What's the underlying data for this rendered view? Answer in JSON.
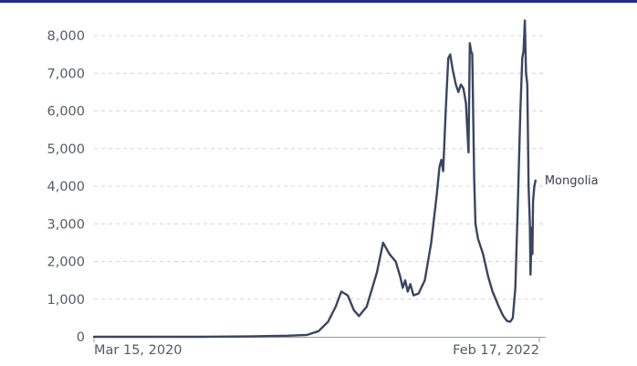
{
  "chart_data": {
    "type": "line",
    "x_ticks": [
      "Mar 15, 2020",
      "Feb 17, 2022"
    ],
    "y_ticks": [
      0,
      1000,
      2000,
      3000,
      4000,
      5000,
      6000,
      7000,
      8000
    ],
    "y_tick_labels": [
      "0",
      "1,000",
      "2,000",
      "3,000",
      "4,000",
      "5,000",
      "6,000",
      "7,000",
      "8,000"
    ],
    "ylim": [
      0,
      8000
    ],
    "xlim": [
      "2020-03-15",
      "2022-02-17"
    ],
    "grid": true,
    "series": [
      {
        "name": "Mongolia",
        "color": "#3a4560",
        "points": [
          [
            "2020-03-15",
            0
          ],
          [
            "2020-06-01",
            0
          ],
          [
            "2020-09-01",
            0
          ],
          [
            "2020-11-15",
            10
          ],
          [
            "2020-12-15",
            20
          ],
          [
            "2021-01-15",
            30
          ],
          [
            "2021-02-15",
            50
          ],
          [
            "2021-03-05",
            150
          ],
          [
            "2021-03-20",
            400
          ],
          [
            "2021-04-01",
            800
          ],
          [
            "2021-04-10",
            1200
          ],
          [
            "2021-04-20",
            1100
          ],
          [
            "2021-04-30",
            700
          ],
          [
            "2021-05-08",
            550
          ],
          [
            "2021-05-20",
            800
          ],
          [
            "2021-06-05",
            1700
          ],
          [
            "2021-06-15",
            2500
          ],
          [
            "2021-06-25",
            2200
          ],
          [
            "2021-07-05",
            2000
          ],
          [
            "2021-07-12",
            1600
          ],
          [
            "2021-07-16",
            1300
          ],
          [
            "2021-07-20",
            1500
          ],
          [
            "2021-07-24",
            1200
          ],
          [
            "2021-07-28",
            1400
          ],
          [
            "2021-08-02",
            1100
          ],
          [
            "2021-08-10",
            1150
          ],
          [
            "2021-08-20",
            1500
          ],
          [
            "2021-08-30",
            2500
          ],
          [
            "2021-09-08",
            3800
          ],
          [
            "2021-09-12",
            4500
          ],
          [
            "2021-09-15",
            4700
          ],
          [
            "2021-09-18",
            4400
          ],
          [
            "2021-09-22",
            6000
          ],
          [
            "2021-09-26",
            7400
          ],
          [
            "2021-09-29",
            7500
          ],
          [
            "2021-10-03",
            7100
          ],
          [
            "2021-10-08",
            6700
          ],
          [
            "2021-10-12",
            6500
          ],
          [
            "2021-10-16",
            6700
          ],
          [
            "2021-10-20",
            6600
          ],
          [
            "2021-10-24",
            6200
          ],
          [
            "2021-10-26",
            5500
          ],
          [
            "2021-10-28",
            4900
          ],
          [
            "2021-10-30",
            7800
          ],
          [
            "2021-11-01",
            7600
          ],
          [
            "2021-11-03",
            7500
          ],
          [
            "2021-11-06",
            4200
          ],
          [
            "2021-11-08",
            3000
          ],
          [
            "2021-11-12",
            2600
          ],
          [
            "2021-11-20",
            2200
          ],
          [
            "2021-11-28",
            1600
          ],
          [
            "2021-12-05",
            1200
          ],
          [
            "2021-12-15",
            800
          ],
          [
            "2021-12-22",
            550
          ],
          [
            "2021-12-28",
            420
          ],
          [
            "2022-01-02",
            400
          ],
          [
            "2022-01-06",
            500
          ],
          [
            "2022-01-10",
            1300
          ],
          [
            "2022-01-14",
            3500
          ],
          [
            "2022-01-18",
            6000
          ],
          [
            "2022-01-21",
            7400
          ],
          [
            "2022-01-23",
            7600
          ],
          [
            "2022-01-25",
            8400
          ],
          [
            "2022-01-27",
            7000
          ],
          [
            "2022-01-29",
            6700
          ],
          [
            "2022-01-31",
            4000
          ],
          [
            "2022-02-02",
            3000
          ],
          [
            "2022-02-03",
            1650
          ],
          [
            "2022-02-05",
            2900
          ],
          [
            "2022-02-06",
            2200
          ],
          [
            "2022-02-07",
            3600
          ],
          [
            "2022-02-09",
            4000
          ],
          [
            "2022-02-11",
            4150
          ]
        ]
      }
    ]
  }
}
